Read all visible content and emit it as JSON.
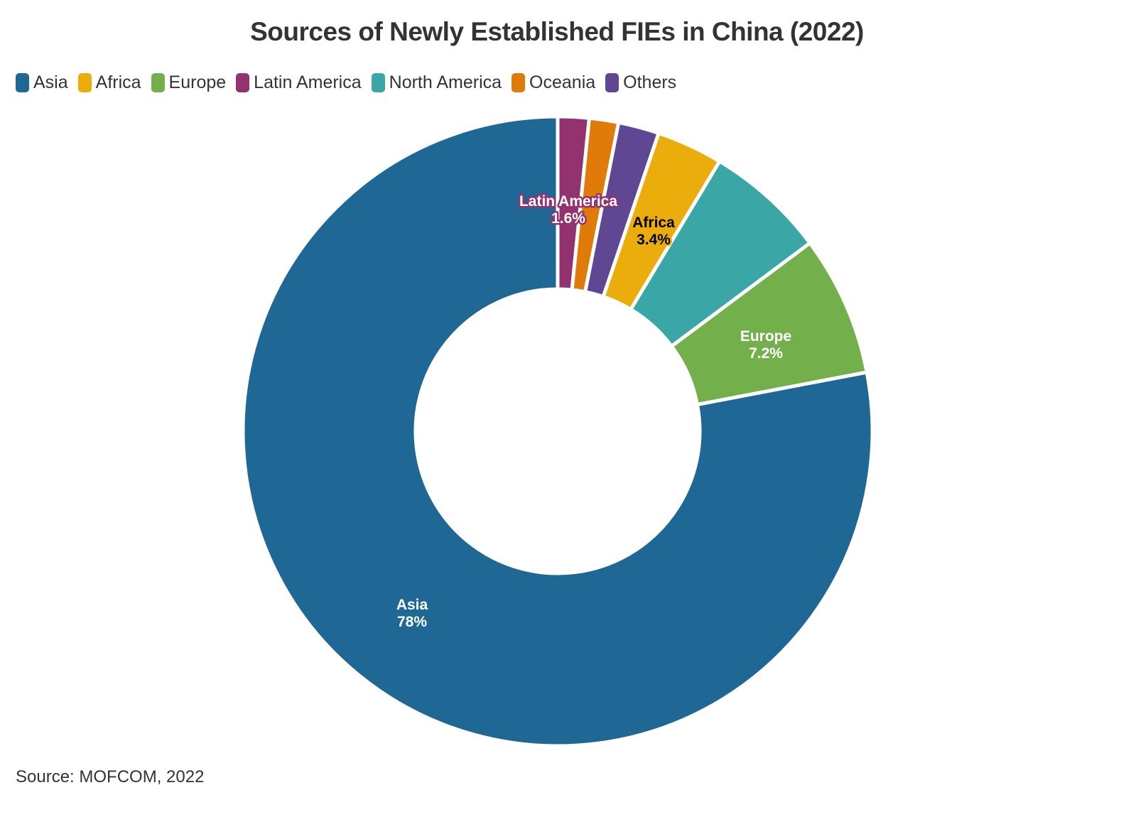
{
  "title": "Sources of Newly Established FIEs in China (2022)",
  "source": "Source: MOFCOM, 2022",
  "legend": [
    {
      "label": "Asia",
      "color": "#1f6895"
    },
    {
      "label": "Africa",
      "color": "#ebad0b"
    },
    {
      "label": "Europe",
      "color": "#73af4b"
    },
    {
      "label": "Latin America",
      "color": "#92326e"
    },
    {
      "label": "North America",
      "color": "#3aa6a6"
    },
    {
      "label": "Oceania",
      "color": "#e07b0a"
    },
    {
      "label": "Others",
      "color": "#5f4793"
    }
  ],
  "chart_data": {
    "type": "pie",
    "subtype": "donut",
    "title": "Sources of Newly Established FIEs in China (2022)",
    "source": "Source: MOFCOM, 2022",
    "legend_position": "top",
    "categories": [
      "Latin America",
      "Oceania",
      "Others",
      "Africa",
      "North America",
      "Europe",
      "Asia"
    ],
    "values": [
      1.6,
      1.5,
      2.1,
      3.4,
      6.2,
      7.2,
      78
    ],
    "colors": [
      "#92326e",
      "#e07b0a",
      "#5f4793",
      "#ebad0b",
      "#3aa6a6",
      "#73af4b",
      "#1f6895"
    ],
    "data_labels": [
      {
        "category": "Latin America",
        "text": "Latin America",
        "value": "1.6%"
      },
      {
        "category": "Africa",
        "text": "Africa",
        "value": "3.4%"
      },
      {
        "category": "Europe",
        "text": "Europe",
        "value": "7.2%"
      },
      {
        "category": "Asia",
        "text": "Asia",
        "value": "78%"
      }
    ],
    "unit": "%"
  }
}
